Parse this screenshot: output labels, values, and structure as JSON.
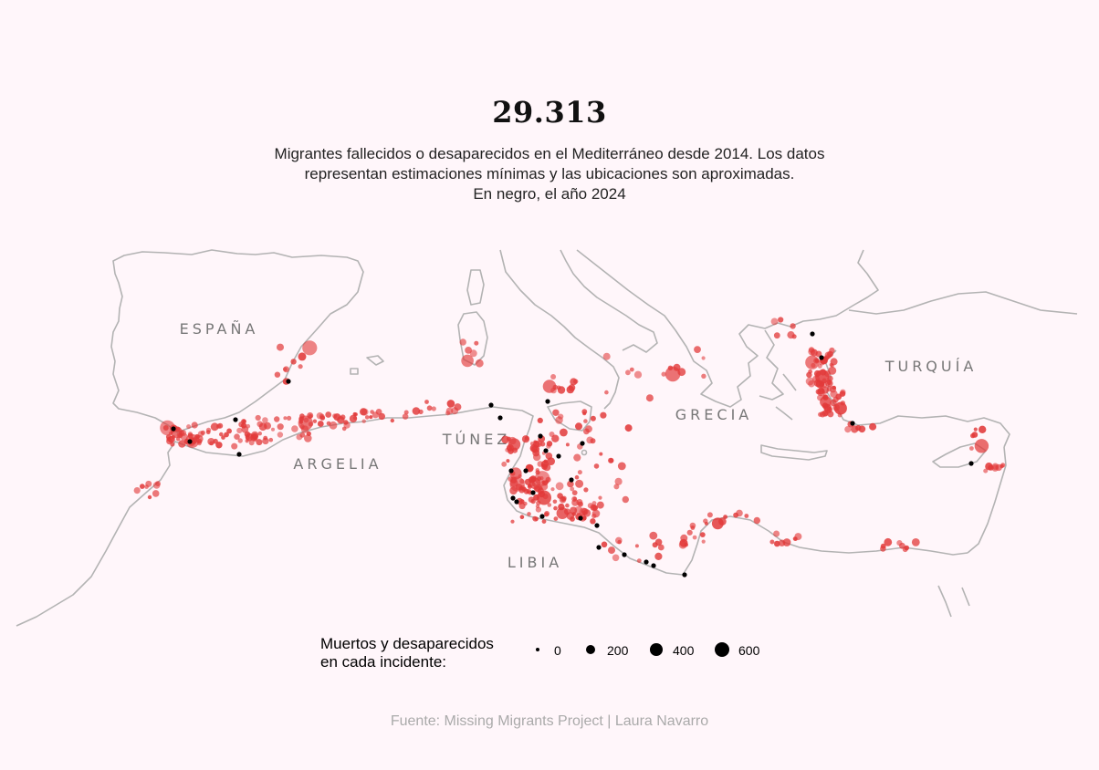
{
  "header": {
    "title": "29.313",
    "subtitle_lines": [
      "Migrantes fallecidos o desaparecidos en el Mediterráneo desde 2014. Los datos",
      "representan estimaciones mínimas y las ubicaciones son aproximadas.",
      "En negro, el año 2024"
    ]
  },
  "map": {
    "country_labels": [
      "ESPAÑA",
      "ARGELIA",
      "TÚNEZ",
      "LIBIA",
      "GRECIA",
      "TURQUÍA"
    ],
    "colors": {
      "coastline": "#b3b3b3",
      "incident": "#e23a3a",
      "incident_2024": "#000000",
      "background": "#fff6fa"
    }
  },
  "legend": {
    "title_lines": [
      "Muertos y desaparecidos",
      "en cada incidente:"
    ],
    "items": [
      {
        "label": "0",
        "value": 0
      },
      {
        "label": "200",
        "value": 200
      },
      {
        "label": "400",
        "value": 400
      },
      {
        "label": "600",
        "value": 600
      }
    ]
  },
  "source": "Fuente: Missing Migrants Project | Laura Navarro"
}
